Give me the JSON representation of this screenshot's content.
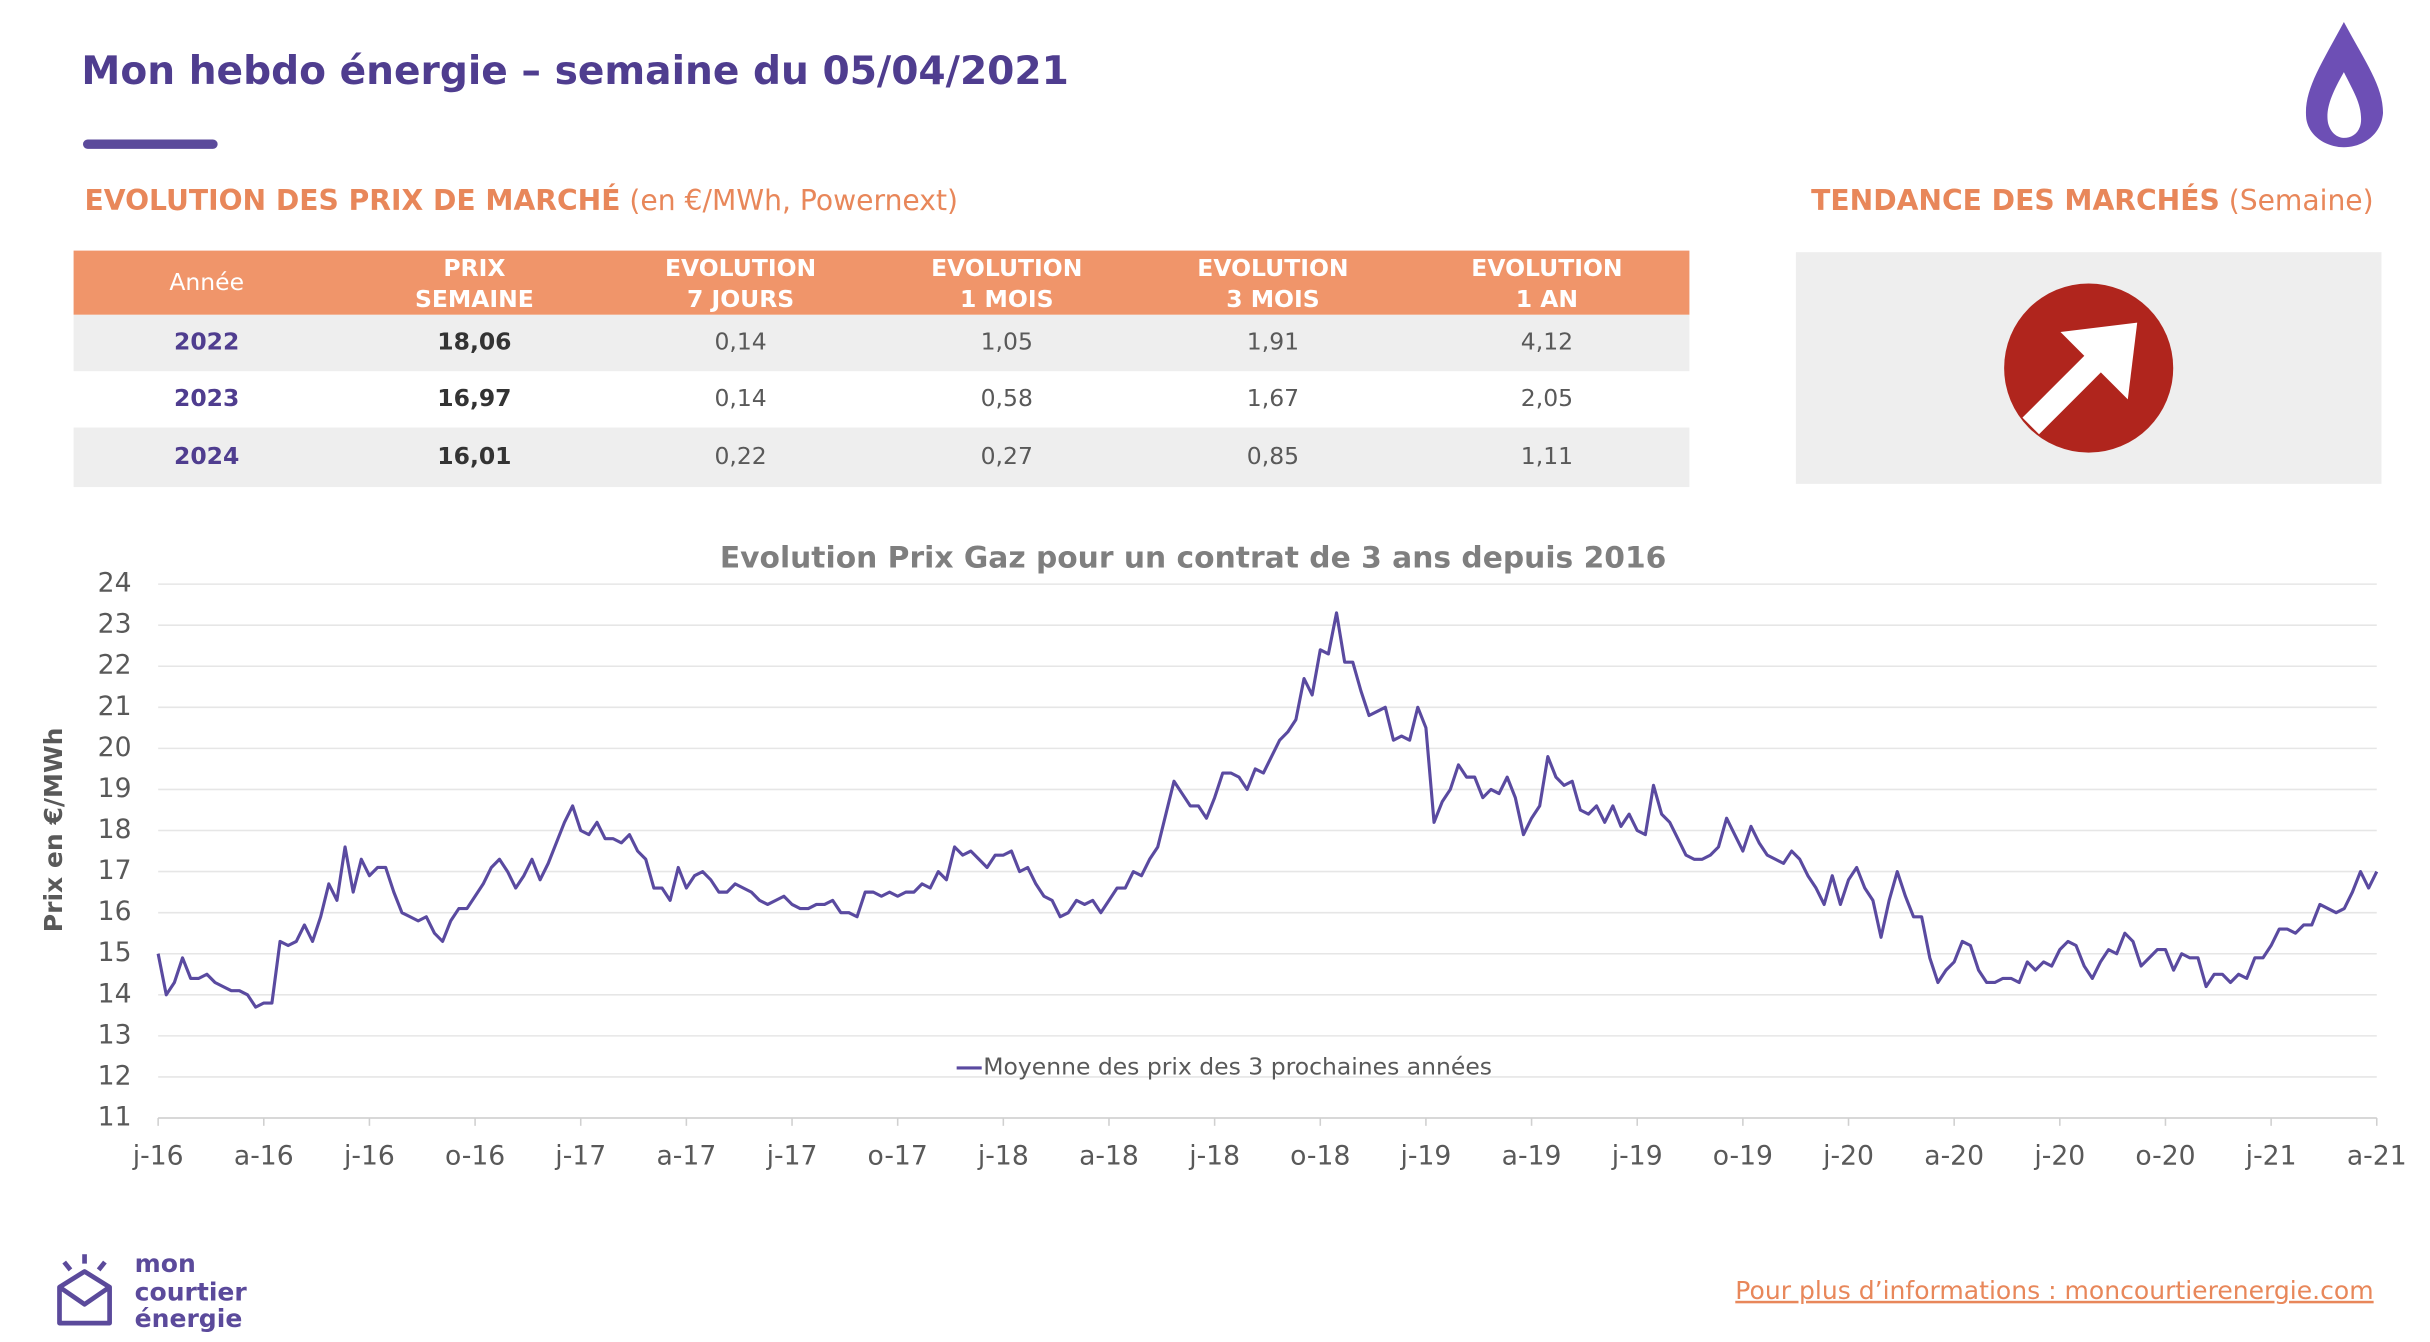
{
  "header": {
    "title": "Mon hebdo énergie – semaine du 05/04/2021"
  },
  "market_prices": {
    "title": "EVOLUTION DES PRIX DE MARCHÉ",
    "subtitle": "(en €/MWh, Powernext)",
    "columns": [
      [
        "Année"
      ],
      [
        "PRIX",
        "SEMAINE"
      ],
      [
        "EVOLUTION",
        "7 JOURS"
      ],
      [
        "EVOLUTION",
        "1 MOIS"
      ],
      [
        "EVOLUTION",
        "3 MOIS"
      ],
      [
        "EVOLUTION",
        "1 AN"
      ]
    ],
    "rows": [
      [
        "2022",
        "18,06",
        "0,14",
        "1,05",
        "1,91",
        "4,12"
      ],
      [
        "2023",
        "16,97",
        "0,14",
        "0,58",
        "1,67",
        "2,05"
      ],
      [
        "2024",
        "16,01",
        "0,22",
        "0,27",
        "0,85",
        "1,11"
      ]
    ]
  },
  "trend": {
    "title": "TENDANCE DES MARCHÉS",
    "subtitle": "(Semaine)"
  },
  "chart_data": {
    "type": "line",
    "title": "Evolution Prix Gaz pour un contrat de 3 ans depuis 2016",
    "y_label": "Prix en €/MWh",
    "categories": [
      "j-16",
      null,
      null,
      null,
      null,
      null,
      null,
      null,
      null,
      null,
      null,
      null,
      null,
      "a-16",
      null,
      null,
      null,
      null,
      null,
      null,
      null,
      null,
      null,
      null,
      null,
      null,
      "j-16",
      null,
      null,
      null,
      null,
      null,
      null,
      null,
      null,
      null,
      null,
      null,
      null,
      "o-16",
      null,
      null,
      null,
      null,
      null,
      null,
      null,
      null,
      null,
      null,
      null,
      null,
      "j-17",
      null,
      null,
      null,
      null,
      null,
      null,
      null,
      null,
      null,
      null,
      null,
      null,
      "a-17",
      null,
      null,
      null,
      null,
      null,
      null,
      null,
      null,
      null,
      null,
      null,
      null,
      "j-17",
      null,
      null,
      null,
      null,
      null,
      null,
      null,
      null,
      null,
      null,
      null,
      null,
      "o-17",
      null,
      null,
      null,
      null,
      null,
      null,
      null,
      null,
      null,
      null,
      null,
      null,
      "j-18",
      null,
      null,
      null,
      null,
      null,
      null,
      null,
      null,
      null,
      null,
      null,
      null,
      "a-18",
      null,
      null,
      null,
      null,
      null,
      null,
      null,
      null,
      null,
      null,
      null,
      null,
      "j-18",
      null,
      null,
      null,
      null,
      null,
      null,
      null,
      null,
      null,
      null,
      null,
      null,
      "o-18",
      null,
      null,
      null,
      null,
      null,
      null,
      null,
      null,
      null,
      null,
      null,
      null,
      "j-19",
      null,
      null,
      null,
      null,
      null,
      null,
      null,
      null,
      null,
      null,
      null,
      null,
      "a-19",
      null,
      null,
      null,
      null,
      null,
      null,
      null,
      null,
      null,
      null,
      null,
      null,
      "j-19",
      null,
      null,
      null,
      null,
      null,
      null,
      null,
      null,
      null,
      null,
      null,
      null,
      "o-19",
      null,
      null,
      null,
      null,
      null,
      null,
      null,
      null,
      null,
      null,
      null,
      null,
      "j-20",
      null,
      null,
      null,
      null,
      null,
      null,
      null,
      null,
      null,
      null,
      null,
      null,
      "a-20",
      null,
      null,
      null,
      null,
      null,
      null,
      null,
      null,
      null,
      null,
      null,
      null,
      "j-20",
      null,
      null,
      null,
      null,
      null,
      null,
      null,
      null,
      null,
      null,
      null,
      null,
      "o-20",
      null,
      null,
      null,
      null,
      null,
      null,
      null,
      null,
      null,
      null,
      null,
      null,
      "j-21",
      null,
      null,
      null,
      null,
      null,
      null,
      null,
      null,
      null,
      null,
      null,
      null,
      "a-21"
    ],
    "series": [
      {
        "name": "Moyenne des prix des 3 prochaines années",
        "color": "#5a4aa0",
        "values": [
          15.0,
          14.0,
          14.3,
          14.9,
          14.4,
          14.4,
          14.5,
          14.3,
          14.2,
          14.1,
          14.1,
          14.0,
          13.7,
          13.8,
          13.8,
          15.3,
          15.2,
          15.3,
          15.7,
          15.3,
          15.9,
          16.7,
          16.3,
          17.6,
          16.5,
          17.3,
          16.9,
          17.1,
          17.1,
          16.5,
          16.0,
          15.9,
          15.8,
          15.9,
          15.5,
          15.3,
          15.8,
          16.1,
          16.1,
          16.4,
          16.7,
          17.1,
          17.3,
          17.0,
          16.6,
          16.9,
          17.3,
          16.8,
          17.2,
          17.7,
          18.2,
          18.6,
          18.0,
          17.9,
          18.2,
          17.8,
          17.8,
          17.7,
          17.9,
          17.5,
          17.3,
          16.6,
          16.6,
          16.3,
          17.1,
          16.6,
          16.9,
          17.0,
          16.8,
          16.5,
          16.5,
          16.7,
          16.6,
          16.5,
          16.3,
          16.2,
          16.3,
          16.4,
          16.2,
          16.1,
          16.1,
          16.2,
          16.2,
          16.3,
          16.0,
          16.0,
          15.9,
          16.5,
          16.5,
          16.4,
          16.5,
          16.4,
          16.5,
          16.5,
          16.7,
          16.6,
          17.0,
          16.8,
          17.6,
          17.4,
          17.5,
          17.3,
          17.1,
          17.4,
          17.4,
          17.5,
          17.0,
          17.1,
          16.7,
          16.4,
          16.3,
          15.9,
          16.0,
          16.3,
          16.2,
          16.3,
          16.0,
          16.3,
          16.6,
          16.6,
          17.0,
          16.9,
          17.3,
          17.6,
          18.4,
          19.2,
          18.9,
          18.6,
          18.6,
          18.3,
          18.8,
          19.4,
          19.4,
          19.3,
          19.0,
          19.5,
          19.4,
          19.8,
          20.2,
          20.4,
          20.7,
          21.7,
          21.3,
          22.4,
          22.3,
          23.3,
          22.1,
          22.1,
          21.4,
          20.8,
          20.9,
          21.0,
          20.2,
          20.3,
          20.2,
          21.0,
          20.5,
          18.2,
          18.7,
          19.0,
          19.6,
          19.3,
          19.3,
          18.8,
          19.0,
          18.9,
          19.3,
          18.8,
          17.9,
          18.3,
          18.6,
          19.8,
          19.3,
          19.1,
          19.2,
          18.5,
          18.4,
          18.6,
          18.2,
          18.6,
          18.1,
          18.4,
          18.0,
          17.9,
          19.1,
          18.4,
          18.2,
          17.8,
          17.4,
          17.3,
          17.3,
          17.4,
          17.6,
          18.3,
          17.9,
          17.5,
          18.1,
          17.7,
          17.4,
          17.3,
          17.2,
          17.5,
          17.3,
          16.9,
          16.6,
          16.2,
          16.9,
          16.2,
          16.8,
          17.1,
          16.6,
          16.3,
          15.4,
          16.3,
          17.0,
          16.4,
          15.9,
          15.9,
          14.9,
          14.3,
          14.6,
          14.8,
          15.3,
          15.2,
          14.6,
          14.3,
          14.3,
          14.4,
          14.4,
          14.3,
          14.8,
          14.6,
          14.8,
          14.7,
          15.1,
          15.3,
          15.2,
          14.7,
          14.4,
          14.8,
          15.1,
          15.0,
          15.5,
          15.3,
          14.7,
          14.9,
          15.1,
          15.1,
          14.6,
          15.0,
          14.9,
          14.9,
          14.2,
          14.5,
          14.5,
          14.3,
          14.5,
          14.4,
          14.9,
          14.9,
          15.2,
          15.6,
          15.6,
          15.5,
          15.7,
          15.7,
          16.2,
          16.1,
          16.0,
          16.1,
          16.5,
          17.0,
          16.6,
          17.0
        ]
      }
    ],
    "ylim": [
      11,
      24
    ],
    "yticks": [
      11,
      12,
      13,
      14,
      15,
      16,
      17,
      18,
      19,
      20,
      21,
      22,
      23,
      24
    ],
    "grid": true
  },
  "footer": {
    "logo": [
      "mon",
      "courtier",
      "énergie"
    ],
    "link": "Pour plus d’informations : moncourtierenergie.com"
  }
}
